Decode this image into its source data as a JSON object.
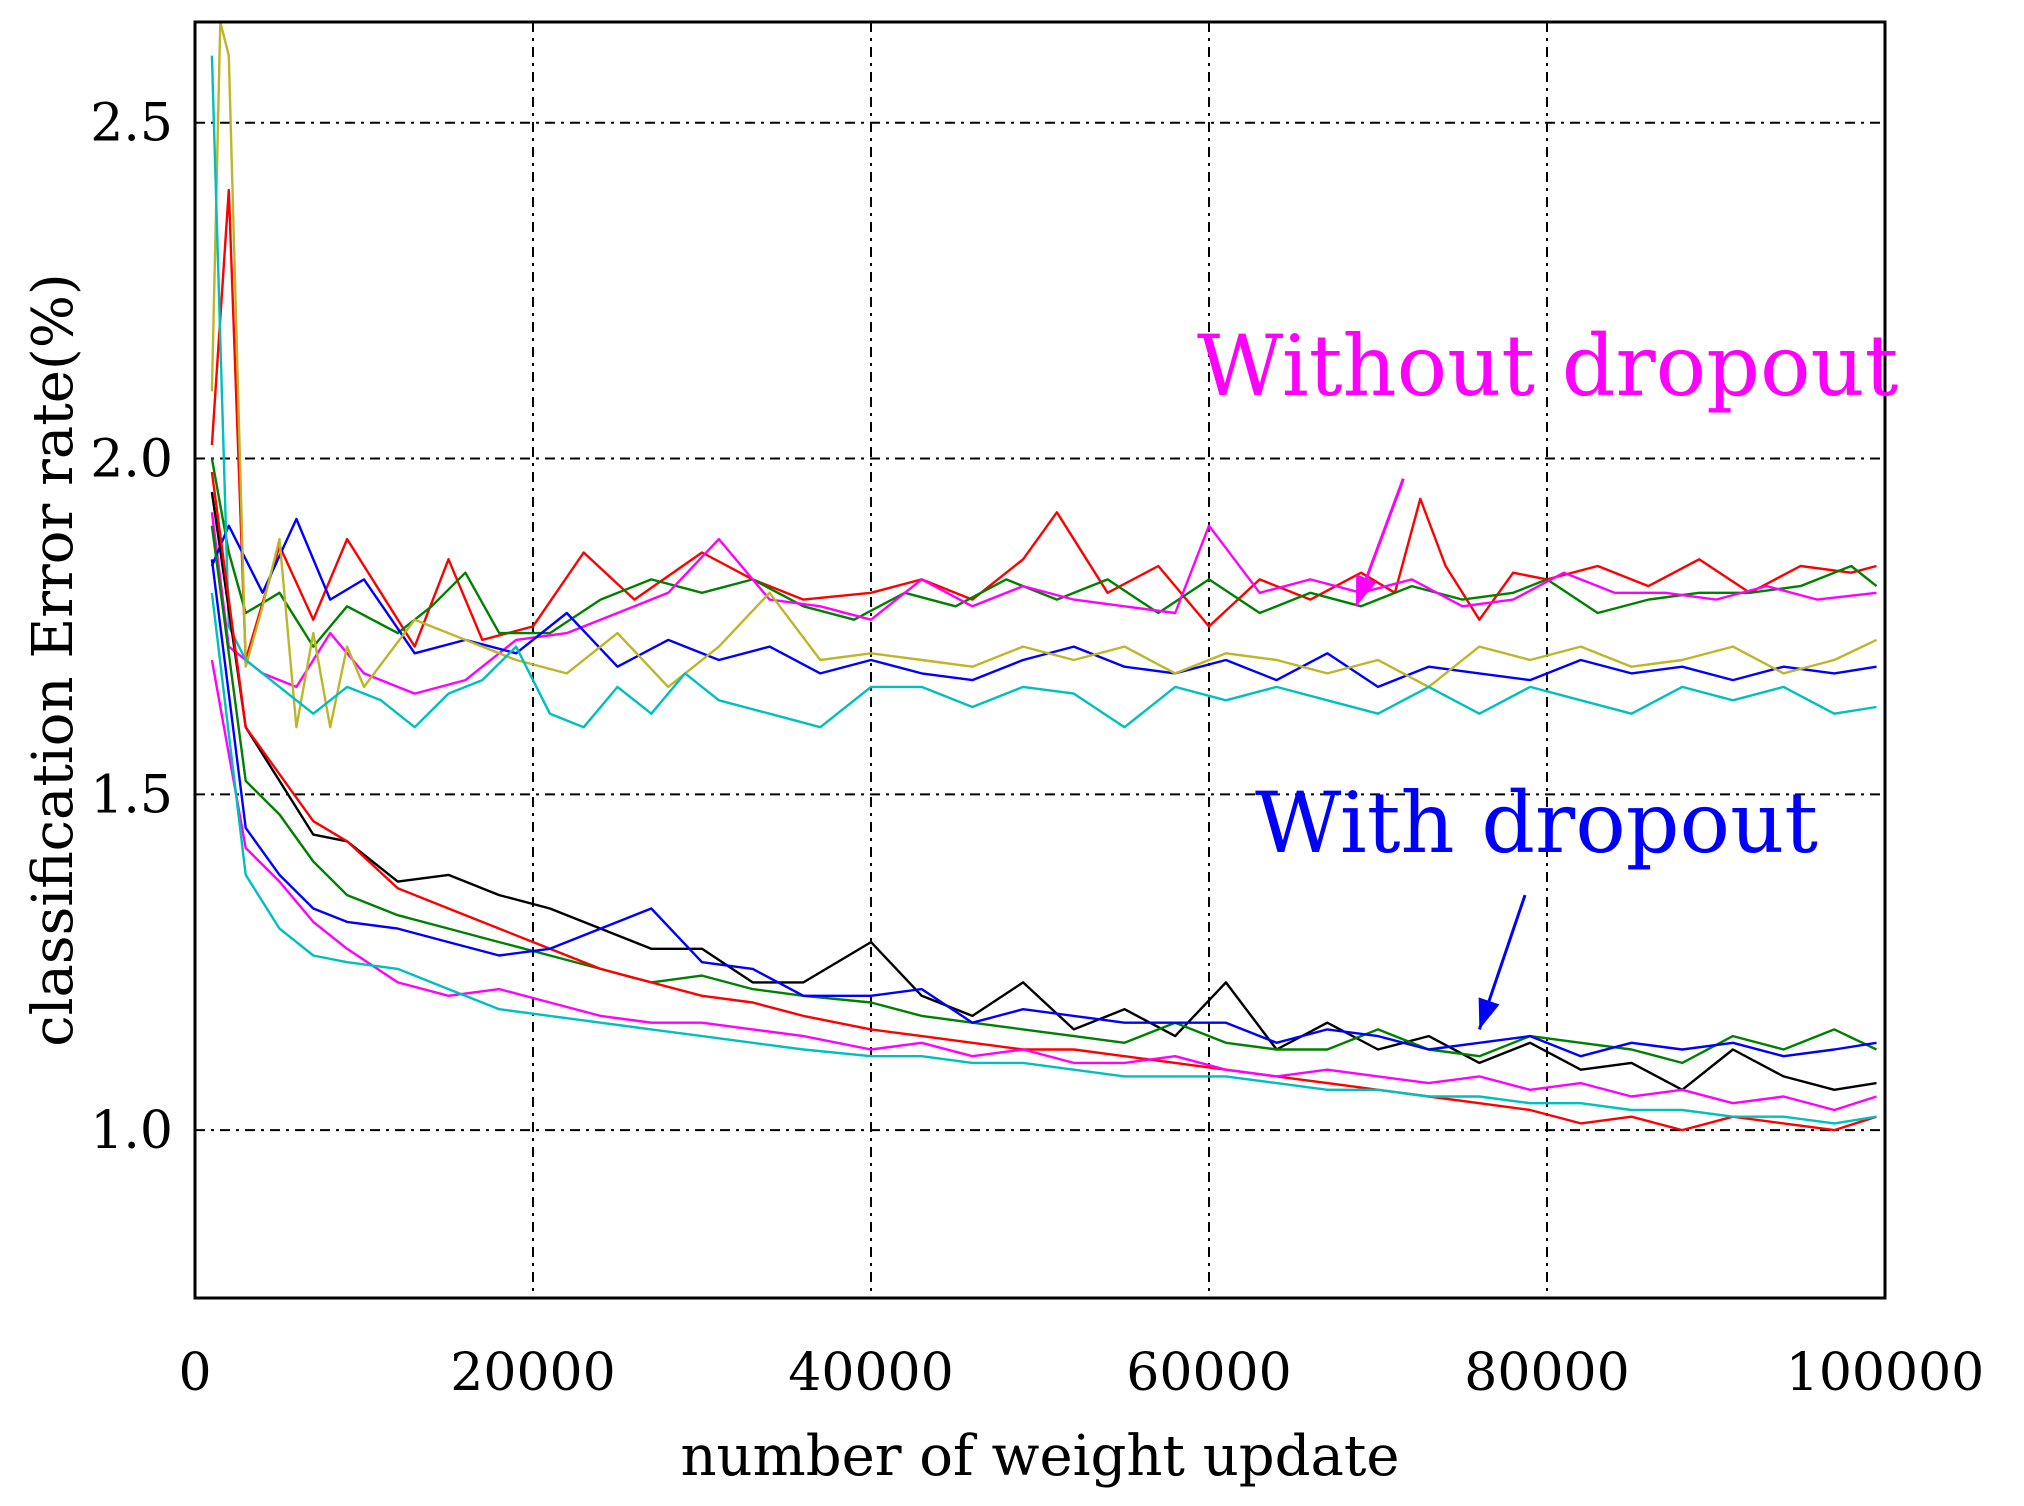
{
  "chart_data": {
    "type": "line",
    "title": "",
    "xlabel": "number of weight update",
    "ylabel": "classification Error rate(%)",
    "xlim": [
      0,
      100000
    ],
    "ylim": [
      0.75,
      2.65
    ],
    "x_ticks": [
      0,
      20000,
      40000,
      60000,
      80000,
      100000
    ],
    "x_tick_labels": [
      "0",
      "20000",
      "40000",
      "60000",
      "80000",
      "100000"
    ],
    "y_ticks": [
      1.0,
      1.5,
      2.0,
      2.5
    ],
    "y_tick_labels": [
      "1.0",
      "1.5",
      "2.0",
      "2.5"
    ],
    "grid": true,
    "annotations": [
      {
        "text": "Without dropout",
        "color": "#ff00ff",
        "arrow_from": [
          71500,
          1.97
        ],
        "arrow_to": [
          68700,
          1.78
        ]
      },
      {
        "text": "With dropout",
        "color": "#0000ff",
        "arrow_from": [
          78700,
          1.35
        ],
        "arrow_to": [
          76000,
          1.15
        ]
      }
    ],
    "series": [
      {
        "name": "Without dropout (red)",
        "group": "without",
        "color": "#ff0000",
        "x": [
          1000,
          2000,
          3000,
          5000,
          7000,
          9000,
          11000,
          13000,
          15000,
          17000,
          20000,
          23000,
          26000,
          30000,
          33000,
          36000,
          40000,
          43000,
          46000,
          49000,
          51000,
          54000,
          57000,
          60000,
          63000,
          66000,
          69000,
          71000,
          72500,
          74000,
          76000,
          78000,
          80000,
          83000,
          86000,
          89000,
          92000,
          95000,
          98000,
          99500
        ],
        "y": [
          2.02,
          2.4,
          1.7,
          1.87,
          1.76,
          1.88,
          1.8,
          1.72,
          1.85,
          1.73,
          1.75,
          1.86,
          1.79,
          1.86,
          1.82,
          1.79,
          1.8,
          1.82,
          1.79,
          1.85,
          1.92,
          1.8,
          1.84,
          1.75,
          1.82,
          1.79,
          1.83,
          1.8,
          1.94,
          1.84,
          1.76,
          1.83,
          1.82,
          1.84,
          1.81,
          1.85,
          1.8,
          1.84,
          1.83,
          1.84
        ]
      },
      {
        "name": "Without dropout (green)",
        "group": "without",
        "color": "#008000",
        "x": [
          1000,
          2000,
          3000,
          5000,
          7000,
          9000,
          12000,
          14000,
          16000,
          18000,
          21000,
          24000,
          27000,
          30000,
          33000,
          36000,
          39000,
          42000,
          45000,
          48000,
          51000,
          54000,
          57000,
          60000,
          63000,
          66000,
          69000,
          72000,
          75000,
          78000,
          80000,
          83000,
          86000,
          89000,
          92000,
          95000,
          98000,
          99500
        ],
        "y": [
          2.0,
          1.86,
          1.77,
          1.8,
          1.72,
          1.78,
          1.74,
          1.78,
          1.83,
          1.74,
          1.74,
          1.79,
          1.82,
          1.8,
          1.82,
          1.78,
          1.76,
          1.8,
          1.78,
          1.82,
          1.79,
          1.82,
          1.77,
          1.82,
          1.77,
          1.8,
          1.78,
          1.81,
          1.79,
          1.8,
          1.82,
          1.77,
          1.79,
          1.8,
          1.8,
          1.81,
          1.84,
          1.81
        ]
      },
      {
        "name": "Without dropout (magenta)",
        "group": "without",
        "color": "#ff00ff",
        "x": [
          1000,
          2000,
          4000,
          6000,
          8000,
          10000,
          13000,
          16000,
          19000,
          22000,
          25000,
          28000,
          31000,
          34000,
          37000,
          40000,
          43000,
          46000,
          49000,
          52000,
          55000,
          58000,
          60000,
          63000,
          66000,
          69000,
          72000,
          75000,
          78000,
          81000,
          84000,
          87000,
          90000,
          93000,
          96000,
          99500
        ],
        "y": [
          1.92,
          1.72,
          1.68,
          1.66,
          1.74,
          1.68,
          1.65,
          1.67,
          1.73,
          1.74,
          1.77,
          1.8,
          1.88,
          1.79,
          1.78,
          1.76,
          1.82,
          1.78,
          1.81,
          1.79,
          1.78,
          1.77,
          1.9,
          1.8,
          1.82,
          1.8,
          1.82,
          1.78,
          1.79,
          1.83,
          1.8,
          1.8,
          1.79,
          1.81,
          1.79,
          1.8
        ]
      },
      {
        "name": "Without dropout (blue)",
        "group": "without",
        "color": "#0000ff",
        "x": [
          1000,
          2000,
          4000,
          6000,
          8000,
          10000,
          13000,
          16000,
          19000,
          22000,
          25000,
          28000,
          31000,
          34000,
          37000,
          40000,
          43000,
          46000,
          49000,
          52000,
          55000,
          58000,
          61000,
          64000,
          67000,
          70000,
          73000,
          76000,
          79000,
          82000,
          85000,
          88000,
          91000,
          94000,
          97000,
          99500
        ],
        "y": [
          1.84,
          1.9,
          1.8,
          1.91,
          1.79,
          1.82,
          1.71,
          1.73,
          1.71,
          1.77,
          1.69,
          1.73,
          1.7,
          1.72,
          1.68,
          1.7,
          1.68,
          1.67,
          1.7,
          1.72,
          1.69,
          1.68,
          1.7,
          1.67,
          1.71,
          1.66,
          1.69,
          1.68,
          1.67,
          1.7,
          1.68,
          1.69,
          1.67,
          1.69,
          1.68,
          1.69
        ]
      },
      {
        "name": "Without dropout (olive)",
        "group": "without",
        "color": "#bdb629",
        "x": [
          1000,
          1500,
          2000,
          3000,
          4000,
          5000,
          6000,
          7000,
          8000,
          9000,
          10000,
          13000,
          16000,
          19000,
          22000,
          25000,
          28000,
          31000,
          34000,
          37000,
          40000,
          43000,
          46000,
          49000,
          52000,
          55000,
          58000,
          61000,
          64000,
          67000,
          70000,
          73000,
          76000,
          79000,
          82000,
          85000,
          88000,
          91000,
          94000,
          97000,
          99500
        ],
        "y": [
          2.1,
          2.65,
          2.6,
          1.69,
          1.78,
          1.88,
          1.6,
          1.74,
          1.6,
          1.72,
          1.66,
          1.76,
          1.73,
          1.7,
          1.68,
          1.74,
          1.66,
          1.72,
          1.8,
          1.7,
          1.71,
          1.7,
          1.69,
          1.72,
          1.7,
          1.72,
          1.68,
          1.71,
          1.7,
          1.68,
          1.7,
          1.66,
          1.72,
          1.7,
          1.72,
          1.69,
          1.7,
          1.72,
          1.68,
          1.7,
          1.73
        ]
      },
      {
        "name": "Without dropout (cyan)",
        "group": "without",
        "color": "#00bfbf",
        "x": [
          1000,
          2000,
          3000,
          5000,
          7000,
          9000,
          11000,
          13000,
          15000,
          17000,
          19000,
          21000,
          23000,
          25000,
          27000,
          29000,
          31000,
          34000,
          37000,
          40000,
          43000,
          46000,
          49000,
          52000,
          55000,
          58000,
          61000,
          64000,
          67000,
          70000,
          73000,
          76000,
          79000,
          82000,
          85000,
          88000,
          91000,
          94000,
          97000,
          99500
        ],
        "y": [
          2.6,
          1.75,
          1.7,
          1.66,
          1.62,
          1.66,
          1.64,
          1.6,
          1.65,
          1.67,
          1.72,
          1.62,
          1.6,
          1.66,
          1.62,
          1.68,
          1.64,
          1.62,
          1.6,
          1.66,
          1.66,
          1.63,
          1.66,
          1.65,
          1.6,
          1.66,
          1.64,
          1.66,
          1.64,
          1.62,
          1.66,
          1.62,
          1.66,
          1.64,
          1.62,
          1.66,
          1.64,
          1.66,
          1.62,
          1.63
        ]
      },
      {
        "name": "With dropout (black)",
        "group": "with",
        "color": "#000000",
        "x": [
          1000,
          3000,
          5000,
          7000,
          9000,
          12000,
          15000,
          18000,
          21000,
          24000,
          27000,
          30000,
          33000,
          36000,
          40000,
          43000,
          46000,
          49000,
          52000,
          55000,
          58000,
          61000,
          64000,
          67000,
          70000,
          73000,
          76000,
          79000,
          82000,
          85000,
          88000,
          91000,
          94000,
          97000,
          99500
        ],
        "y": [
          1.95,
          1.6,
          1.52,
          1.44,
          1.43,
          1.37,
          1.38,
          1.35,
          1.33,
          1.3,
          1.27,
          1.27,
          1.22,
          1.22,
          1.28,
          1.2,
          1.17,
          1.22,
          1.15,
          1.18,
          1.14,
          1.22,
          1.12,
          1.16,
          1.12,
          1.14,
          1.1,
          1.13,
          1.09,
          1.1,
          1.06,
          1.12,
          1.08,
          1.06,
          1.07
        ]
      },
      {
        "name": "With dropout (green)",
        "group": "with",
        "color": "#008000",
        "x": [
          1000,
          3000,
          5000,
          7000,
          9000,
          12000,
          15000,
          18000,
          21000,
          24000,
          27000,
          30000,
          33000,
          36000,
          40000,
          43000,
          46000,
          49000,
          52000,
          55000,
          58000,
          61000,
          64000,
          67000,
          70000,
          73000,
          76000,
          79000,
          82000,
          85000,
          88000,
          91000,
          94000,
          97000,
          99500
        ],
        "y": [
          1.9,
          1.52,
          1.47,
          1.4,
          1.35,
          1.32,
          1.3,
          1.28,
          1.26,
          1.24,
          1.22,
          1.23,
          1.21,
          1.2,
          1.19,
          1.17,
          1.16,
          1.15,
          1.14,
          1.13,
          1.16,
          1.13,
          1.12,
          1.12,
          1.15,
          1.12,
          1.11,
          1.14,
          1.13,
          1.12,
          1.1,
          1.14,
          1.12,
          1.15,
          1.12
        ]
      },
      {
        "name": "With dropout (red)",
        "group": "with",
        "color": "#ff0000",
        "x": [
          1000,
          3000,
          5000,
          7000,
          9000,
          12000,
          15000,
          18000,
          21000,
          24000,
          27000,
          30000,
          33000,
          36000,
          40000,
          43000,
          46000,
          49000,
          52000,
          55000,
          58000,
          61000,
          64000,
          67000,
          70000,
          73000,
          76000,
          79000,
          82000,
          85000,
          88000,
          91000,
          94000,
          97000,
          99500
        ],
        "y": [
          1.98,
          1.6,
          1.53,
          1.46,
          1.43,
          1.36,
          1.33,
          1.3,
          1.27,
          1.24,
          1.22,
          1.2,
          1.19,
          1.17,
          1.15,
          1.14,
          1.13,
          1.12,
          1.12,
          1.11,
          1.1,
          1.09,
          1.08,
          1.07,
          1.06,
          1.05,
          1.04,
          1.03,
          1.01,
          1.02,
          1.0,
          1.02,
          1.01,
          1.0,
          1.02
        ]
      },
      {
        "name": "With dropout (blue)",
        "group": "with",
        "color": "#0000ff",
        "x": [
          1000,
          3000,
          5000,
          7000,
          9000,
          12000,
          15000,
          18000,
          21000,
          24000,
          27000,
          30000,
          33000,
          36000,
          40000,
          43000,
          46000,
          49000,
          52000,
          55000,
          58000,
          61000,
          64000,
          67000,
          70000,
          73000,
          76000,
          79000,
          82000,
          85000,
          88000,
          91000,
          94000,
          97000,
          99500
        ],
        "y": [
          1.85,
          1.45,
          1.38,
          1.33,
          1.31,
          1.3,
          1.28,
          1.26,
          1.27,
          1.3,
          1.33,
          1.25,
          1.24,
          1.2,
          1.2,
          1.21,
          1.16,
          1.18,
          1.17,
          1.16,
          1.16,
          1.16,
          1.13,
          1.15,
          1.14,
          1.12,
          1.13,
          1.14,
          1.11,
          1.13,
          1.12,
          1.13,
          1.11,
          1.12,
          1.13
        ]
      },
      {
        "name": "With dropout (magenta)",
        "group": "with",
        "color": "#ff00ff",
        "x": [
          1000,
          3000,
          5000,
          7000,
          9000,
          12000,
          15000,
          18000,
          21000,
          24000,
          27000,
          30000,
          33000,
          36000,
          40000,
          43000,
          46000,
          49000,
          52000,
          55000,
          58000,
          61000,
          64000,
          67000,
          70000,
          73000,
          76000,
          79000,
          82000,
          85000,
          88000,
          91000,
          94000,
          97000,
          99500
        ],
        "y": [
          1.7,
          1.42,
          1.37,
          1.31,
          1.27,
          1.22,
          1.2,
          1.21,
          1.19,
          1.17,
          1.16,
          1.16,
          1.15,
          1.14,
          1.12,
          1.13,
          1.11,
          1.12,
          1.1,
          1.1,
          1.11,
          1.09,
          1.08,
          1.09,
          1.08,
          1.07,
          1.08,
          1.06,
          1.07,
          1.05,
          1.06,
          1.04,
          1.05,
          1.03,
          1.05
        ]
      },
      {
        "name": "With dropout (cyan)",
        "group": "with",
        "color": "#00bfbf",
        "x": [
          1000,
          3000,
          5000,
          7000,
          9000,
          12000,
          15000,
          18000,
          21000,
          24000,
          27000,
          30000,
          33000,
          36000,
          40000,
          43000,
          46000,
          49000,
          52000,
          55000,
          58000,
          61000,
          64000,
          67000,
          70000,
          73000,
          76000,
          79000,
          82000,
          85000,
          88000,
          91000,
          94000,
          97000,
          99500
        ],
        "y": [
          1.8,
          1.38,
          1.3,
          1.26,
          1.25,
          1.24,
          1.21,
          1.18,
          1.17,
          1.16,
          1.15,
          1.14,
          1.13,
          1.12,
          1.11,
          1.11,
          1.1,
          1.1,
          1.09,
          1.08,
          1.08,
          1.08,
          1.07,
          1.06,
          1.06,
          1.05,
          1.05,
          1.04,
          1.04,
          1.03,
          1.03,
          1.02,
          1.02,
          1.01,
          1.02
        ]
      }
    ]
  }
}
